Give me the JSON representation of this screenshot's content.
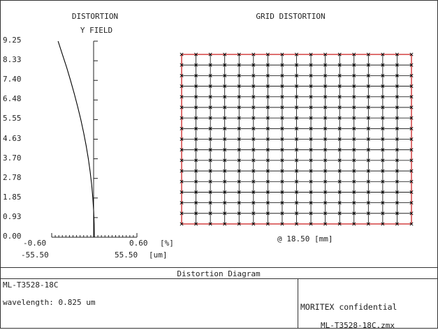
{
  "panels": {
    "left_title": "DISTORTION",
    "left_subtitle": "Y FIELD",
    "right_title": "GRID DISTORTION",
    "footer_title": "Distortion Diagram"
  },
  "footer": {
    "lens_name": "ML-T3528-18C",
    "wavelength": "wavelength: 0.825 um",
    "company": "MORITEX confidential",
    "file": "ML-T3528-18C.zmx"
  },
  "grid_label": "@ 18.50 [mm]",
  "colors": {
    "grid_actual": "#000000",
    "grid_paraxial": "#cc2222"
  },
  "chart_data": [
    {
      "type": "line",
      "title": "DISTORTION",
      "ylabel": "Y FIELD",
      "ylim": [
        0,
        9.25
      ],
      "yticks": [
        "0.00",
        "0.93",
        "1.85",
        "2.78",
        "3.70",
        "4.63",
        "5.55",
        "6.48",
        "7.40",
        "8.33",
        "9.25"
      ],
      "xlim": [
        -0.6,
        0.6
      ],
      "xticks_percent": {
        "min": "-0.60",
        "max": "0.60",
        "unit": "[%]"
      },
      "xticks_um": {
        "min": "-55.50",
        "max": "55.50",
        "unit": "[um]"
      },
      "series": [
        {
          "x": [
            0.0,
            -0.002,
            -0.009,
            -0.021,
            -0.037,
            -0.058,
            -0.084,
            -0.115,
            -0.15,
            -0.19,
            -0.235,
            -0.283,
            -0.335,
            -0.39,
            -0.45,
            -0.51
          ],
          "y": [
            0.0,
            0.62,
            1.23,
            1.85,
            2.47,
            3.08,
            3.7,
            4.32,
            4.93,
            5.55,
            6.17,
            6.78,
            7.4,
            8.02,
            8.63,
            9.25
          ]
        }
      ]
    },
    {
      "type": "grid",
      "title": "GRID DISTORTION",
      "divisions": 16,
      "field_mm": 18.5
    }
  ]
}
